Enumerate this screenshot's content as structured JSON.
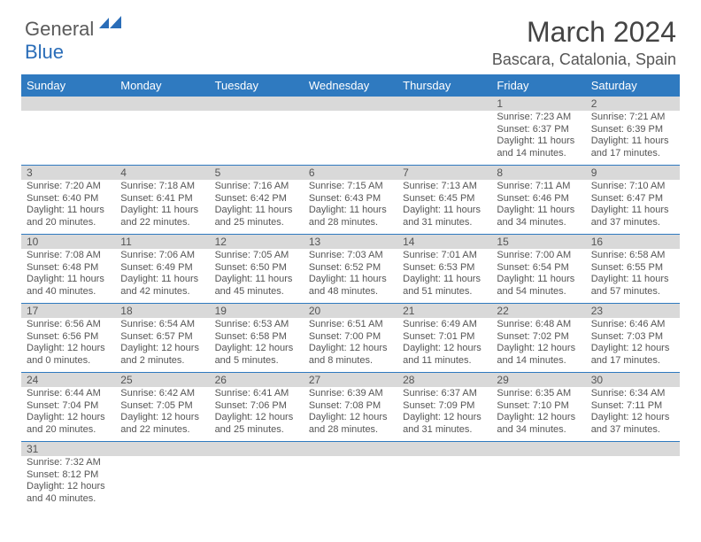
{
  "logo": {
    "part1": "General",
    "part2": "Blue"
  },
  "title": "March 2024",
  "location": "Bascara, Catalonia, Spain",
  "colors": {
    "header_bg": "#2f7ac0",
    "header_text": "#ffffff",
    "daynum_bg": "#d9d9d9",
    "border": "#2f7ac0"
  },
  "weekdays": [
    "Sunday",
    "Monday",
    "Tuesday",
    "Wednesday",
    "Thursday",
    "Friday",
    "Saturday"
  ],
  "days": {
    "1": {
      "sr": "7:23 AM",
      "ss": "6:37 PM",
      "dl": "11 hours and 14 minutes."
    },
    "2": {
      "sr": "7:21 AM",
      "ss": "6:39 PM",
      "dl": "11 hours and 17 minutes."
    },
    "3": {
      "sr": "7:20 AM",
      "ss": "6:40 PM",
      "dl": "11 hours and 20 minutes."
    },
    "4": {
      "sr": "7:18 AM",
      "ss": "6:41 PM",
      "dl": "11 hours and 22 minutes."
    },
    "5": {
      "sr": "7:16 AM",
      "ss": "6:42 PM",
      "dl": "11 hours and 25 minutes."
    },
    "6": {
      "sr": "7:15 AM",
      "ss": "6:43 PM",
      "dl": "11 hours and 28 minutes."
    },
    "7": {
      "sr": "7:13 AM",
      "ss": "6:45 PM",
      "dl": "11 hours and 31 minutes."
    },
    "8": {
      "sr": "7:11 AM",
      "ss": "6:46 PM",
      "dl": "11 hours and 34 minutes."
    },
    "9": {
      "sr": "7:10 AM",
      "ss": "6:47 PM",
      "dl": "11 hours and 37 minutes."
    },
    "10": {
      "sr": "7:08 AM",
      "ss": "6:48 PM",
      "dl": "11 hours and 40 minutes."
    },
    "11": {
      "sr": "7:06 AM",
      "ss": "6:49 PM",
      "dl": "11 hours and 42 minutes."
    },
    "12": {
      "sr": "7:05 AM",
      "ss": "6:50 PM",
      "dl": "11 hours and 45 minutes."
    },
    "13": {
      "sr": "7:03 AM",
      "ss": "6:52 PM",
      "dl": "11 hours and 48 minutes."
    },
    "14": {
      "sr": "7:01 AM",
      "ss": "6:53 PM",
      "dl": "11 hours and 51 minutes."
    },
    "15": {
      "sr": "7:00 AM",
      "ss": "6:54 PM",
      "dl": "11 hours and 54 minutes."
    },
    "16": {
      "sr": "6:58 AM",
      "ss": "6:55 PM",
      "dl": "11 hours and 57 minutes."
    },
    "17": {
      "sr": "6:56 AM",
      "ss": "6:56 PM",
      "dl": "12 hours and 0 minutes."
    },
    "18": {
      "sr": "6:54 AM",
      "ss": "6:57 PM",
      "dl": "12 hours and 2 minutes."
    },
    "19": {
      "sr": "6:53 AM",
      "ss": "6:58 PM",
      "dl": "12 hours and 5 minutes."
    },
    "20": {
      "sr": "6:51 AM",
      "ss": "7:00 PM",
      "dl": "12 hours and 8 minutes."
    },
    "21": {
      "sr": "6:49 AM",
      "ss": "7:01 PM",
      "dl": "12 hours and 11 minutes."
    },
    "22": {
      "sr": "6:48 AM",
      "ss": "7:02 PM",
      "dl": "12 hours and 14 minutes."
    },
    "23": {
      "sr": "6:46 AM",
      "ss": "7:03 PM",
      "dl": "12 hours and 17 minutes."
    },
    "24": {
      "sr": "6:44 AM",
      "ss": "7:04 PM",
      "dl": "12 hours and 20 minutes."
    },
    "25": {
      "sr": "6:42 AM",
      "ss": "7:05 PM",
      "dl": "12 hours and 22 minutes."
    },
    "26": {
      "sr": "6:41 AM",
      "ss": "7:06 PM",
      "dl": "12 hours and 25 minutes."
    },
    "27": {
      "sr": "6:39 AM",
      "ss": "7:08 PM",
      "dl": "12 hours and 28 minutes."
    },
    "28": {
      "sr": "6:37 AM",
      "ss": "7:09 PM",
      "dl": "12 hours and 31 minutes."
    },
    "29": {
      "sr": "6:35 AM",
      "ss": "7:10 PM",
      "dl": "12 hours and 34 minutes."
    },
    "30": {
      "sr": "6:34 AM",
      "ss": "7:11 PM",
      "dl": "12 hours and 37 minutes."
    },
    "31": {
      "sr": "7:32 AM",
      "ss": "8:12 PM",
      "dl": "12 hours and 40 minutes."
    }
  },
  "labels": {
    "sunrise": "Sunrise:",
    "sunset": "Sunset:",
    "daylight": "Daylight:"
  },
  "grid": [
    [
      null,
      null,
      null,
      null,
      null,
      "1",
      "2"
    ],
    [
      "3",
      "4",
      "5",
      "6",
      "7",
      "8",
      "9"
    ],
    [
      "10",
      "11",
      "12",
      "13",
      "14",
      "15",
      "16"
    ],
    [
      "17",
      "18",
      "19",
      "20",
      "21",
      "22",
      "23"
    ],
    [
      "24",
      "25",
      "26",
      "27",
      "28",
      "29",
      "30"
    ],
    [
      "31",
      null,
      null,
      null,
      null,
      null,
      null
    ]
  ]
}
